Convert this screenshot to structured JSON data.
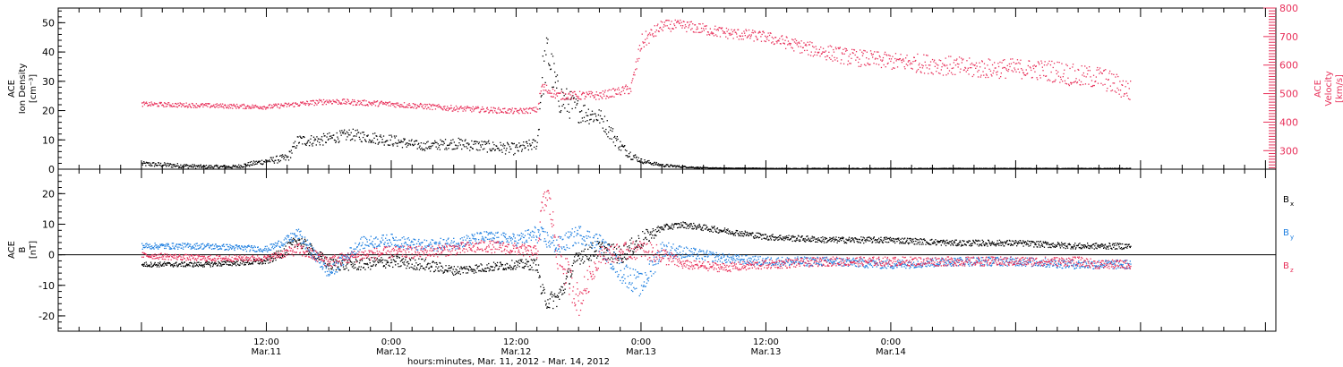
{
  "chart_data": [
    {
      "type": "scatter",
      "ylabel_lines": [
        "ACE",
        "Ion Density",
        "[cm⁻³]"
      ],
      "y2label_lines": [
        "ACE",
        "Velocity",
        "[km/s]"
      ],
      "ylim": [
        0,
        55
      ],
      "y2lim": [
        235,
        800
      ],
      "yticks": [
        0,
        10,
        20,
        30,
        40,
        50
      ],
      "y2ticks": [
        300,
        400,
        500,
        600,
        700,
        800
      ],
      "colors": {
        "density": "#000000",
        "velocity": "#e8305a"
      },
      "series": [
        {
          "key": "density",
          "axis": "left",
          "x": [
            0,
            3,
            6,
            9,
            12,
            14,
            15,
            17,
            20,
            24,
            27,
            30,
            33,
            36,
            37,
            38,
            38.4,
            39,
            40,
            42,
            44,
            45,
            46,
            47,
            48,
            50,
            52,
            54,
            56,
            59,
            60,
            64,
            68,
            72,
            78,
            84,
            88,
            90,
            95
          ],
          "y": [
            2,
            1.5,
            1,
            1,
            3,
            4,
            10,
            10,
            12,
            10,
            8,
            9,
            8,
            7,
            8,
            9,
            30,
            40,
            25,
            20,
            18,
            13,
            8,
            5,
            3,
            1.5,
            1,
            0.6,
            0.5,
            0.5,
            0.4,
            0.4,
            0.4,
            0.4,
            0.4,
            0.4,
            0.4,
            0.4,
            0.4
          ],
          "spread": [
            0.8,
            0.8,
            0.6,
            0.6,
            1,
            1.5,
            2,
            2,
            2,
            2,
            1.5,
            2,
            2,
            2,
            2,
            2,
            8,
            8,
            6,
            4,
            3,
            3,
            2,
            1.5,
            0.8,
            0.5,
            0.3,
            0.2,
            0.1,
            0.1,
            0.1,
            0.1,
            0.1,
            0.1,
            0.1,
            0.1,
            0.1,
            0.1,
            0.1
          ]
        },
        {
          "key": "velocity",
          "axis": "right",
          "x": [
            0,
            6,
            12,
            18,
            24,
            30,
            33,
            36,
            38,
            38.4,
            40,
            44,
            46,
            47,
            48,
            50,
            52,
            56,
            60,
            64,
            68,
            72,
            76,
            80,
            84,
            86,
            88,
            90,
            92,
            95
          ],
          "y": [
            465,
            460,
            455,
            475,
            465,
            450,
            445,
            440,
            445,
            525,
            495,
            495,
            510,
            520,
            680,
            740,
            740,
            715,
            700,
            660,
            630,
            615,
            605,
            590,
            590,
            585,
            580,
            560,
            560,
            510
          ],
          "spread": [
            8,
            8,
            8,
            10,
            10,
            10,
            10,
            10,
            10,
            20,
            15,
            15,
            15,
            20,
            30,
            20,
            20,
            20,
            20,
            25,
            30,
            30,
            35,
            35,
            35,
            35,
            40,
            40,
            40,
            40
          ]
        }
      ]
    },
    {
      "type": "scatter",
      "ylabel_lines": [
        "ACE",
        "B",
        "[nT]"
      ],
      "ylim": [
        -25,
        28
      ],
      "yticks": [
        -20,
        -10,
        0,
        10,
        20
      ],
      "zero_line": true,
      "legend": [
        {
          "main": "B",
          "sub": "x",
          "color": "#000000"
        },
        {
          "main": "B",
          "sub": "y",
          "color": "#1e7fe0"
        },
        {
          "main": "B",
          "sub": "z",
          "color": "#e8305a"
        }
      ],
      "series": [
        {
          "key": "bx",
          "x": [
            0,
            6,
            12,
            14,
            15,
            18,
            21,
            24,
            27,
            30,
            33,
            36,
            38,
            38.4,
            39,
            40,
            42,
            44,
            46,
            48,
            50,
            52,
            54,
            56,
            58,
            60,
            66,
            72,
            78,
            84,
            90,
            92,
            95
          ],
          "y": [
            -3,
            -3,
            -2,
            2,
            5,
            -3,
            -3,
            -2,
            -3,
            -5,
            -4,
            -3,
            -3,
            -12,
            -15,
            -14,
            0,
            2,
            0,
            5,
            9,
            10,
            9,
            8,
            7,
            6,
            5,
            5,
            4,
            4,
            3,
            3,
            3
          ],
          "spread": [
            0.8,
            0.8,
            1,
            2,
            2,
            2,
            2,
            2,
            2,
            1.5,
            1.5,
            1.5,
            2,
            3,
            3,
            3,
            3,
            3,
            3,
            3,
            1,
            1,
            1,
            1,
            1,
            1,
            1,
            1,
            1,
            1,
            1,
            1,
            1
          ]
        },
        {
          "key": "by",
          "x": [
            0,
            6,
            12,
            14,
            15,
            18,
            21,
            24,
            27,
            30,
            33,
            36,
            38,
            39,
            40,
            42,
            44,
            46,
            48,
            50,
            52,
            56,
            60,
            66,
            72,
            78,
            84,
            90,
            92,
            95
          ],
          "y": [
            3,
            3,
            2,
            5,
            7,
            -6,
            4,
            5,
            3,
            4,
            6,
            5,
            7,
            5,
            3,
            7,
            4,
            -5,
            -10,
            2,
            1,
            -1,
            -2,
            -2,
            -3,
            -2,
            -2,
            -3,
            -3,
            -3
          ],
          "spread": [
            1,
            1,
            1,
            1.5,
            2,
            2,
            2,
            2,
            2,
            2,
            2,
            2,
            3,
            3,
            3,
            3,
            3,
            4,
            4,
            3,
            2,
            1.5,
            1.5,
            1.5,
            1.5,
            1.5,
            1.5,
            1.5,
            1.5,
            1.5
          ]
        },
        {
          "key": "bz",
          "x": [
            0,
            6,
            12,
            14,
            15,
            18,
            21,
            24,
            27,
            30,
            33,
            36,
            38,
            38.4,
            39,
            40,
            42,
            44,
            46,
            48,
            50,
            52,
            56,
            60,
            66,
            72,
            78,
            84,
            90,
            92,
            95
          ],
          "y": [
            0,
            -1,
            -1,
            1,
            2,
            -2,
            0,
            1,
            1,
            2,
            3,
            2,
            1,
            15,
            20,
            0,
            -15,
            0,
            1,
            2,
            0,
            -3,
            -4,
            -3,
            -2,
            -2,
            -2,
            -2,
            -2,
            -3,
            -3
          ],
          "spread": [
            1,
            1,
            1,
            1.5,
            2,
            2,
            2,
            2,
            2,
            2,
            2,
            2,
            2,
            4,
            4,
            6,
            5,
            3,
            3,
            3,
            3,
            1.5,
            1.5,
            1.5,
            1.5,
            1.5,
            1.5,
            1.5,
            1.5,
            1.5,
            1.5
          ]
        }
      ]
    }
  ],
  "xaxis": {
    "xlim": [
      -8,
      109
    ],
    "major_ticks": [
      {
        "x": 12,
        "time": "12:00",
        "date": "Mar.11"
      },
      {
        "x": 24,
        "time": "0:00",
        "date": "Mar.12"
      },
      {
        "x": 36,
        "time": "12:00",
        "date": "Mar.12"
      },
      {
        "x": 48,
        "time": "0:00",
        "date": "Mar.13"
      },
      {
        "x": 60,
        "time": "12:00",
        "date": "Mar.13"
      },
      {
        "x": 72,
        "time": "0:00",
        "date": "Mar.14"
      }
    ],
    "title": "hours:minutes, Mar. 11, 2012 - Mar. 14, 2012"
  }
}
